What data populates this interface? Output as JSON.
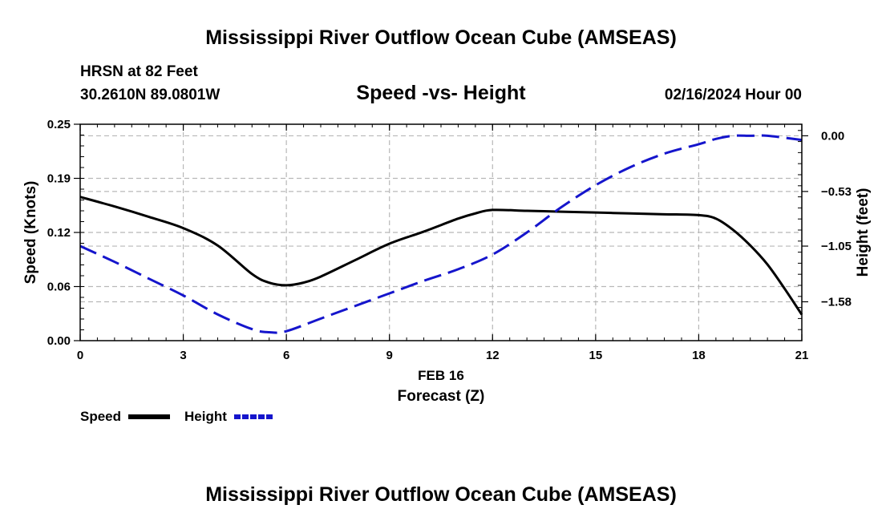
{
  "title": "Mississippi River Outflow Ocean Cube (AMSEAS)",
  "footer_title": "Mississippi River Outflow Ocean Cube (AMSEAS)",
  "station": {
    "name": "HRSN at 82 Feet",
    "coords": "30.2610N  89.0801W",
    "datetime": "02/16/2024 Hour 00"
  },
  "chart_data": {
    "type": "line",
    "title": "Speed -vs- Height",
    "xlabel": "Forecast (Z)",
    "xlabel_date": "FEB 16",
    "ylabel": "Speed (Knots)",
    "y2label": "Height (feet)",
    "xlim": [
      0,
      21
    ],
    "ylim": [
      0,
      0.25
    ],
    "y2lim": [
      -1.95,
      0.11
    ],
    "x_ticks": [
      0,
      3,
      6,
      9,
      12,
      15,
      18,
      21
    ],
    "x_tick_labels": [
      "0",
      "3",
      "6",
      "9",
      "12",
      "15",
      "18",
      "21"
    ],
    "y_ticks": [
      0,
      0.0625,
      0.125,
      0.1875,
      0.25
    ],
    "y_tick_labels": [
      "0.00",
      "0.06",
      "0.12",
      "0.19",
      "0.25"
    ],
    "y2_ticks": [
      0.0,
      -0.53,
      -1.05,
      -1.58
    ],
    "y2_tick_labels": [
      "0.00",
      "−0.53",
      "−1.05",
      "−1.58"
    ],
    "grid": true,
    "series": [
      {
        "name": "Speed",
        "axis": "left",
        "color": "#000000",
        "style": "solid",
        "x": [
          0,
          1,
          2,
          3,
          4,
          5,
          5.5,
          6,
          6.5,
          7,
          8,
          9,
          10,
          11,
          11.5,
          12,
          13,
          14,
          15,
          16,
          17,
          18,
          18.5,
          19,
          19.5,
          20,
          20.5,
          21
        ],
        "y": [
          0.166,
          0.155,
          0.143,
          0.13,
          0.11,
          0.077,
          0.067,
          0.064,
          0.067,
          0.074,
          0.093,
          0.112,
          0.126,
          0.141,
          0.147,
          0.151,
          0.15,
          0.149,
          0.148,
          0.147,
          0.146,
          0.145,
          0.141,
          0.128,
          0.11,
          0.088,
          0.06,
          0.03
        ]
      },
      {
        "name": "Height",
        "axis": "right",
        "color": "#1515cc",
        "style": "dashed",
        "x": [
          0,
          1,
          2,
          3,
          4,
          5,
          5.5,
          6,
          7,
          8,
          9,
          10,
          11,
          12,
          13,
          14,
          15,
          16,
          17,
          18,
          18.5,
          19,
          19.5,
          20,
          21
        ],
        "y": [
          -1.05,
          -1.2,
          -1.36,
          -1.52,
          -1.7,
          -1.84,
          -1.87,
          -1.86,
          -1.74,
          -1.62,
          -1.5,
          -1.38,
          -1.27,
          -1.13,
          -0.92,
          -0.68,
          -0.47,
          -0.3,
          -0.17,
          -0.08,
          -0.03,
          0.0,
          0.0,
          0.0,
          -0.04
        ]
      }
    ],
    "legend": [
      {
        "label": "Speed",
        "color": "#000000",
        "style": "solid"
      },
      {
        "label": "Height",
        "color": "#1515cc",
        "style": "dashed"
      }
    ]
  }
}
